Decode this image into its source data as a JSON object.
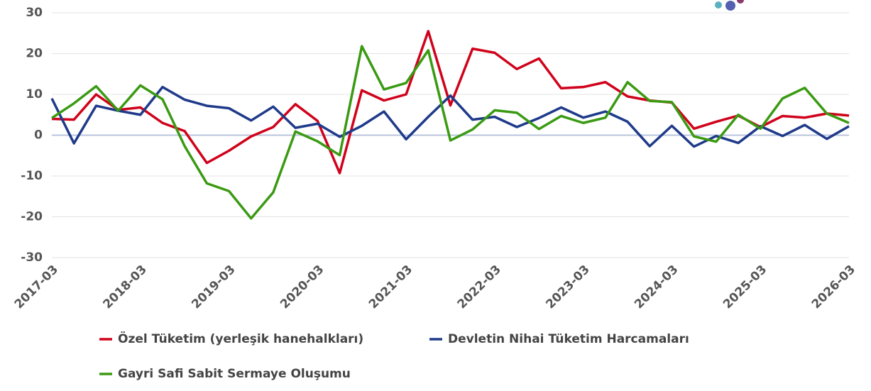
{
  "chart_data": {
    "type": "line",
    "categories": [
      "2017-03",
      null,
      null,
      null,
      "2018-03",
      null,
      null,
      null,
      "2019-03",
      null,
      null,
      null,
      "2020-03",
      null,
      null,
      null,
      "2021-03",
      null,
      null,
      null,
      "2022-03",
      null,
      null,
      null,
      "2023-03",
      null,
      null,
      null,
      "2024-03",
      null,
      null,
      null,
      "2025-03",
      null,
      null,
      null,
      "2026-03"
    ],
    "series": [
      {
        "name": "Özel Tüketim (yerleşik hanehalkları)",
        "color": "#d0021b",
        "values": [
          4,
          3.8,
          10,
          6.2,
          6.8,
          3,
          1,
          -6.8,
          -3.8,
          -0.3,
          2,
          7.6,
          3.5,
          -9.3,
          11,
          8.5,
          10,
          25.5,
          7.3,
          21.2,
          20.2,
          16.2,
          18.8,
          11.5,
          11.8,
          13,
          9.5,
          8.5,
          8,
          1.6,
          3.3,
          4.8,
          2,
          4.7,
          4.3,
          5.3,
          4.8
        ]
      },
      {
        "name": "Devletin Nihai Tüketim Harcamaları",
        "color": "#1f3a8a",
        "values": [
          9,
          -2,
          7.2,
          6,
          5,
          11.8,
          8.7,
          7.2,
          6.6,
          3.6,
          7,
          1.8,
          2.8,
          -0.4,
          2.3,
          5.8,
          -1,
          4.5,
          9.7,
          3.8,
          4.5,
          2,
          4.2,
          6.8,
          4.3,
          5.8,
          3.3,
          -2.7,
          2.3,
          -2.8,
          -0.2,
          -1.9,
          2.2,
          -0.2,
          2.5,
          -0.9,
          2.2
        ]
      },
      {
        "name": "Gayri Safi Sabit Sermaye Oluşumu",
        "color": "#3a9a12",
        "values": [
          4.2,
          7.8,
          12,
          6,
          12.2,
          8.8,
          -2.7,
          -11.8,
          -13.7,
          -20.4,
          -14,
          0.9,
          -1.5,
          -4.9,
          21.8,
          11.2,
          12.8,
          20.8,
          -1.3,
          1.4,
          6.1,
          5.5,
          1.5,
          4.7,
          3,
          4.3,
          13,
          8.4,
          8.1,
          -0.3,
          -1.6,
          5,
          1.6,
          9,
          11.6,
          5.3,
          3
        ]
      }
    ],
    "ylim": [
      -30,
      30
    ],
    "yticks": [
      -30,
      -20,
      -10,
      0,
      10,
      20,
      30
    ],
    "grid": true
  }
}
